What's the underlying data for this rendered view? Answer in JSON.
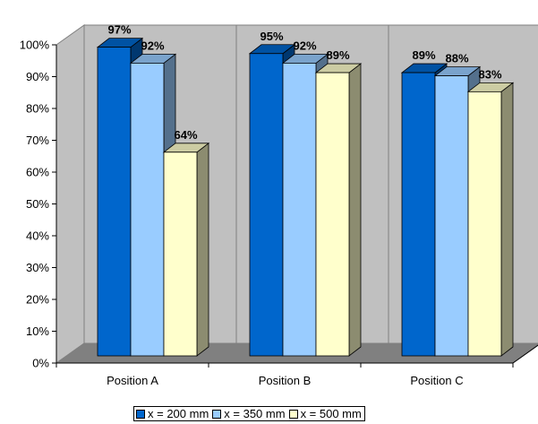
{
  "chart_data": {
    "type": "bar",
    "categories": [
      "Position A",
      "Position B",
      "Position C"
    ],
    "series": [
      {
        "name": "x = 200 mm",
        "values": [
          97,
          95,
          89
        ],
        "labels": [
          "97%",
          "95%",
          "89%"
        ],
        "color": "#0066CC"
      },
      {
        "name": "x = 350 mm",
        "values": [
          92,
          92,
          88
        ],
        "labels": [
          "92%",
          "92%",
          "88%"
        ],
        "color": "#99CCFF"
      },
      {
        "name": "x = 500 mm",
        "values": [
          64,
          89,
          83
        ],
        "labels": [
          "64%",
          "89%",
          "83%"
        ],
        "color": "#FFFFCC"
      }
    ],
    "yticks": [
      "0%",
      "10%",
      "20%",
      "30%",
      "40%",
      "50%",
      "60%",
      "70%",
      "80%",
      "90%",
      "100%"
    ],
    "ylim": [
      0,
      100
    ],
    "title": "",
    "xlabel": "",
    "ylabel": "",
    "grid": false,
    "style": "3d-clustered-column",
    "wall_color": "#C0C0C0",
    "floor_color": "#808080",
    "legend_position": "bottom"
  }
}
